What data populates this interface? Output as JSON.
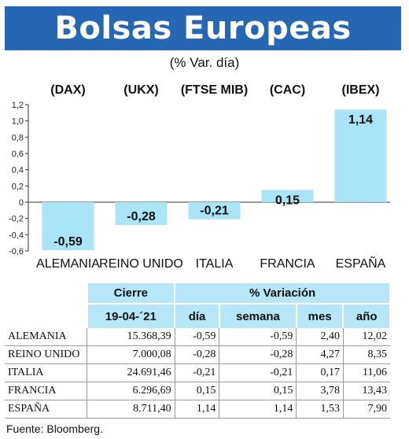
{
  "title": "Bolsas Europeas",
  "subtitle": "(% Var. día)",
  "chart_data": {
    "type": "bar",
    "categories": [
      "ALEMANIA",
      "REINO UNIDO",
      "ITALIA",
      "FRANCIA",
      "ESPAÑA"
    ],
    "indices": [
      "(DAX)",
      "(UKX)",
      "(FTSE MIB)",
      "(CAC)",
      "(IBEX)"
    ],
    "values": [
      -0.59,
      -0.28,
      -0.21,
      0.15,
      1.14
    ],
    "value_labels": [
      "-0,59",
      "-0,28",
      "-0,21",
      "0,15",
      "1,14"
    ],
    "ylim": [
      -0.6,
      1.2
    ],
    "yticks": [
      -0.6,
      -0.4,
      -0.2,
      0,
      0.2,
      0.4,
      0.6,
      0.8,
      1.0,
      1.2
    ],
    "ytick_labels": [
      "-0,6",
      "-0,4",
      "-0,2",
      "0",
      "0,2",
      "0,4",
      "0,6",
      "0,8",
      "1,0",
      "1,2"
    ],
    "bar_color": "#a9e4f7",
    "grid": false
  },
  "table": {
    "header_cierre": "Cierre",
    "header_variacion": "% Variación",
    "date": "19-04-´21",
    "sub_headers": [
      "día",
      "semana",
      "mes",
      "año"
    ],
    "rows": [
      {
        "name": "ALEMANIA",
        "cierre": "15.368,39",
        "dia": "-0,59",
        "semana": "-0,59",
        "mes": "2,40",
        "ano": "12,02"
      },
      {
        "name": "REINO UNIDO",
        "cierre": "7.000,08",
        "dia": "-0,28",
        "semana": "-0,28",
        "mes": "4,27",
        "ano": "8,35"
      },
      {
        "name": "ITALIA",
        "cierre": "24.691,46",
        "dia": "-0,21",
        "semana": "-0,21",
        "mes": "0,17",
        "ano": "11,06"
      },
      {
        "name": "FRANCIA",
        "cierre": "6.296,69",
        "dia": "0,15",
        "semana": "0,15",
        "mes": "3,78",
        "ano": "13,43"
      },
      {
        "name": "ESPAÑA",
        "cierre": "8.711,40",
        "dia": "1,14",
        "semana": "1,14",
        "mes": "1,53",
        "ano": "7,90"
      }
    ]
  },
  "source": "Fuente: Bloomberg.",
  "colors": {
    "banner": "#2567b3",
    "header_fill": "#b7e6f8"
  }
}
